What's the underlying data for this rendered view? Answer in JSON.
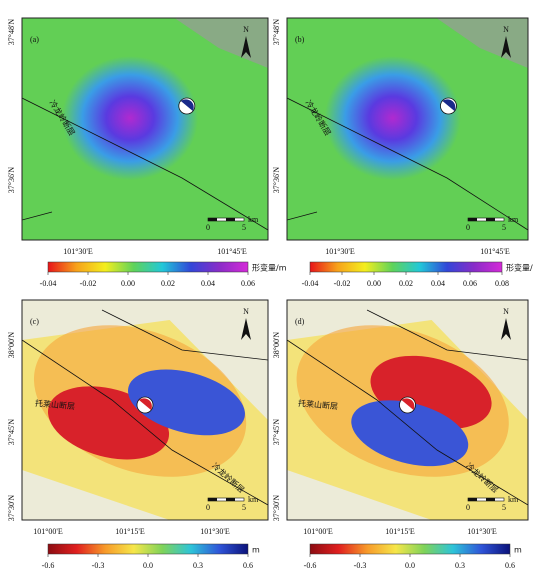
{
  "panels": [
    {
      "letter": "(a)",
      "lat_labels": [
        "37°48'N",
        "37°36'N"
      ],
      "lon_labels": [
        "101°30'E",
        "101°45'E"
      ],
      "faults": [
        "冷龙岭断层"
      ],
      "north": "N",
      "scale": {
        "ticks": [
          0,
          5
        ],
        "unit": "km"
      },
      "colorbar": {
        "range": [
          -0.04,
          0.06
        ],
        "ticks": [
          -0.04,
          -0.02,
          {
            "value": 0,
            "label": "0.00"
          },
          0.02,
          0.04,
          0.06
        ],
        "unit": "形变量/m",
        "colors": [
          "#e8141a",
          "#f7a21b",
          "#f4ee1e",
          "#5fd35a",
          "#22c8d8",
          "#3246d8",
          "#8a2cc8",
          "#d52ad8"
        ]
      }
    },
    {
      "letter": "(b)",
      "lat_labels": [
        "37°48'N",
        "37°36'N"
      ],
      "lon_labels": [
        "101°30'E",
        "101°45'E"
      ],
      "faults": [
        "冷龙岭断层"
      ],
      "north": "N",
      "scale": {
        "ticks": [
          0,
          5
        ],
        "unit": "km"
      },
      "colorbar": {
        "range": [
          -0.04,
          0.08
        ],
        "ticks": [
          -0.04,
          -0.02,
          {
            "value": 0,
            "label": "0.00"
          },
          0.02,
          0.04,
          0.06,
          0.08
        ],
        "unit": "形变量/",
        "colors": [
          "#e8141a",
          "#f7a21b",
          "#f4ee1e",
          "#5fd35a",
          "#22c8d8",
          "#3246d8",
          "#8a2cc8",
          "#d52ad8"
        ]
      }
    },
    {
      "letter": "(c)",
      "lat_labels": [
        "38°00'N",
        "37°45'N",
        "37°30'N"
      ],
      "lon_labels": [
        "101°00'E",
        "101°15'E",
        "101°30'E"
      ],
      "faults": [
        "托莱山断层",
        "冷龙岭断层"
      ],
      "north": "N",
      "scale": {
        "ticks": [
          0,
          5
        ],
        "unit": "km"
      },
      "colorbar": {
        "range": [
          -0.6,
          0.6
        ],
        "ticks": [
          -0.6,
          -0.3,
          {
            "value": 0,
            "label": "0.0"
          },
          0.3,
          0.6
        ],
        "unit": "m",
        "colors": [
          "#8c0c12",
          "#e01f1f",
          "#f79a2a",
          "#f6e64a",
          "#7fd35a",
          "#2ec4d8",
          "#2f54d8",
          "#0b127a"
        ]
      }
    },
    {
      "letter": "(d)",
      "lat_labels": [
        "38°00'N",
        "37°45'N",
        "37°30'N"
      ],
      "lon_labels": [
        "101°00'E",
        "101°15'E",
        "101°30'E"
      ],
      "faults": [
        "托莱山断层",
        "冷龙岭断层"
      ],
      "north": "N",
      "scale": {
        "ticks": [
          0,
          5
        ],
        "unit": "km"
      },
      "colorbar": {
        "range": [
          -0.6,
          0.6
        ],
        "ticks": [
          -0.6,
          -0.3,
          {
            "value": 0,
            "label": "0.0"
          },
          0.3,
          0.6
        ],
        "unit": "m",
        "colors": [
          "#8c0c12",
          "#e01f1f",
          "#f79a2a",
          "#f6e64a",
          "#7fd35a",
          "#2ec4d8",
          "#2f54d8",
          "#0b127a"
        ]
      }
    }
  ]
}
